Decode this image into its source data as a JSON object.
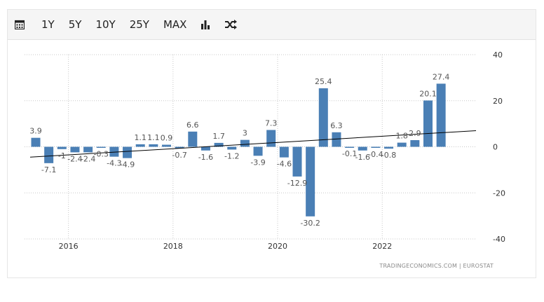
{
  "toolbar": {
    "items": [
      {
        "name": "calendar-icon"
      },
      {
        "label": "1Y"
      },
      {
        "label": "5Y"
      },
      {
        "label": "10Y"
      },
      {
        "label": "25Y"
      },
      {
        "label": "MAX"
      },
      {
        "name": "bar-chart-icon"
      },
      {
        "name": "shuffle-icon"
      }
    ]
  },
  "source_text": "TRADINGECONOMICS.COM  |  EUROSTAT",
  "colors": {
    "bar": "#4a7fb5",
    "trend": "#000000",
    "grid": "#c8c8c8",
    "label": "#555555"
  },
  "chart_data": {
    "type": "bar",
    "title": "",
    "xlabel": "",
    "ylabel": "",
    "ylim": [
      -40,
      40
    ],
    "yticks": [
      40,
      20,
      0,
      -20,
      -40
    ],
    "x_tick_labels": [
      "2016",
      "2018",
      "2020",
      "2022"
    ],
    "x_tick_dates": [
      "2016-01",
      "2018-01",
      "2020-01",
      "2022-01"
    ],
    "grid": true,
    "trendline": {
      "start": -4.5,
      "end": 7.0
    },
    "categories": [
      "2015-Q2",
      "2015-Q3",
      "2015-Q4",
      "2016-Q1",
      "2016-Q2",
      "2016-Q3",
      "2016-Q4",
      "2017-Q1",
      "2017-Q2",
      "2017-Q3",
      "2017-Q4",
      "2018-Q1",
      "2018-Q2",
      "2018-Q3",
      "2018-Q4",
      "2019-Q1",
      "2019-Q2",
      "2019-Q3",
      "2019-Q4",
      "2020-Q1",
      "2020-Q2",
      "2020-Q3",
      "2020-Q4",
      "2021-Q1",
      "2021-Q2",
      "2021-Q3",
      "2021-Q4",
      "2022-Q1",
      "2022-Q2",
      "2022-Q3",
      "2022-Q4",
      "2023-Q1"
    ],
    "values": [
      3.9,
      -7.1,
      -1,
      -2.4,
      -2.4,
      -0.3,
      -4.3,
      -4.9,
      1.1,
      1.1,
      0.9,
      -0.7,
      6.6,
      -1.6,
      1.7,
      -1.2,
      3,
      -3.9,
      7.3,
      -4.6,
      -12.9,
      -30.2,
      25.4,
      6.3,
      -0.1,
      -1.6,
      -0.4,
      -0.8,
      1.8,
      2.9,
      20.1,
      27.4
    ],
    "data_labels": [
      "3.9",
      "-7.1",
      "-1",
      "-2.4",
      "-2.4",
      "-0.3",
      "-4.3",
      "-4.9",
      "1.1",
      "1.1",
      "0.9",
      "-0.7",
      "6.6",
      "-1.6",
      "1.7",
      "-1.2",
      "3",
      "-3.9",
      "7.3",
      "-4.6",
      "-12.9",
      "-30.2",
      "25.4",
      "6.3",
      "-0.1",
      "-1.6",
      "-0.4",
      "-0.8",
      "1.8",
      "2.9",
      "20.1",
      "27.4"
    ]
  }
}
